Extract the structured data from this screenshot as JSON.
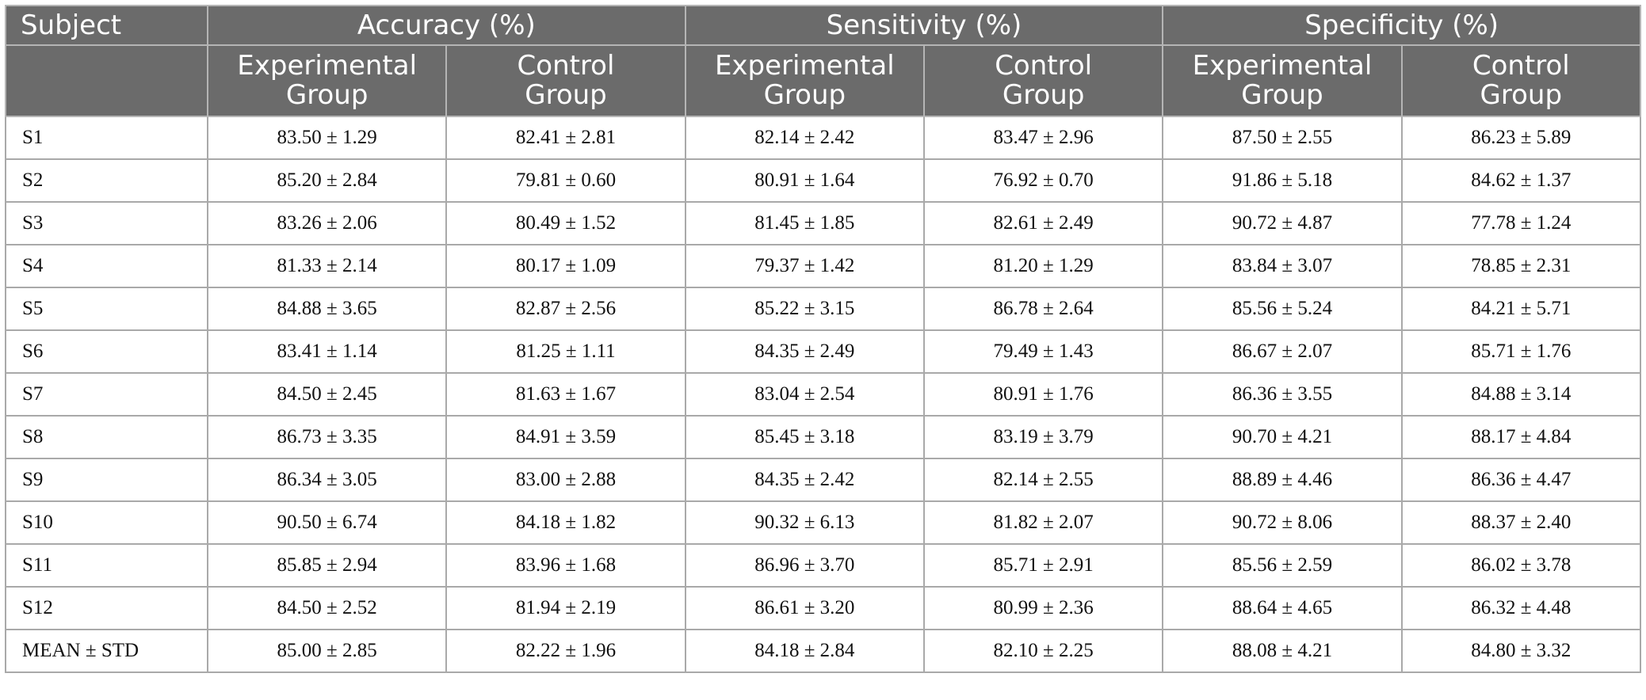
{
  "header": {
    "subject_label": "Subject",
    "groups": [
      "Accuracy (%)",
      "Sensitivity (%)",
      "Specificity (%)"
    ],
    "subheaders": [
      [
        "Experimental",
        "Group"
      ],
      [
        "Control",
        "Group"
      ],
      [
        "Experimental",
        "Group"
      ],
      [
        "Control",
        "Group"
      ],
      [
        "Experimental",
        "Group"
      ],
      [
        "Control",
        "Group"
      ]
    ]
  },
  "rows": [
    [
      "S1",
      "83.50 ± 1.29",
      "82.41 ± 2.81",
      "82.14 ± 2.42",
      "83.47 ± 2.96",
      "87.50 ± 2.55",
      "86.23 ± 5.89"
    ],
    [
      "S2",
      "85.20 ± 2.84",
      "79.81 ± 0.60",
      "80.91 ± 1.64",
      "76.92 ± 0.70",
      "91.86 ± 5.18",
      "84.62 ± 1.37"
    ],
    [
      "S3",
      "83.26 ± 2.06",
      "80.49 ± 1.52",
      "81.45 ± 1.85",
      "82.61 ± 2.49",
      "90.72 ± 4.87",
      "77.78 ± 1.24"
    ],
    [
      "S4",
      "81.33 ± 2.14",
      "80.17 ± 1.09",
      "79.37 ± 1.42",
      "81.20 ± 1.29",
      "83.84 ± 3.07",
      "78.85 ± 2.31"
    ],
    [
      "S5",
      "84.88 ± 3.65",
      "82.87 ± 2.56",
      "85.22 ± 3.15",
      "86.78 ± 2.64",
      "85.56 ± 5.24",
      "84.21 ± 5.71"
    ],
    [
      "S6",
      "83.41 ± 1.14",
      "81.25 ± 1.11",
      "84.35 ± 2.49",
      "79.49 ± 1.43",
      "86.67 ± 2.07",
      "85.71 ± 1.76"
    ],
    [
      "S7",
      "84.50 ± 2.45",
      "81.63 ± 1.67",
      "83.04 ± 2.54",
      "80.91 ± 1.76",
      "86.36 ± 3.55",
      "84.88 ± 3.14"
    ],
    [
      "S8",
      "86.73 ± 3.35",
      "84.91 ± 3.59",
      "85.45 ± 3.18",
      "83.19 ± 3.79",
      "90.70 ± 4.21",
      "88.17 ± 4.84"
    ],
    [
      "S9",
      "86.34 ± 3.05",
      "83.00 ± 2.88",
      "84.35 ± 2.42",
      "82.14 ± 2.55",
      "88.89 ± 4.46",
      "86.36 ± 4.47"
    ],
    [
      "S10",
      "90.50 ± 6.74",
      "84.18 ± 1.82",
      "90.32 ± 6.13",
      "81.82 ± 2.07",
      "90.72 ± 8.06",
      "88.37 ± 2.40"
    ],
    [
      "S11",
      "85.85 ± 2.94",
      "83.96 ± 1.68",
      "86.96 ± 3.70",
      "85.71 ± 2.91",
      "85.56 ± 2.59",
      "86.02 ± 3.78"
    ],
    [
      "S12",
      "84.50 ± 2.52",
      "81.94 ± 2.19",
      "86.61 ± 3.20",
      "80.99 ± 2.36",
      "88.64 ± 4.65",
      "86.32 ± 4.48"
    ],
    [
      "MEAN ± STD",
      "85.00 ± 2.85",
      "82.22 ± 1.96",
      "84.18 ± 2.84",
      "82.10 ± 2.25",
      "88.08 ± 4.21",
      "84.80 ± 3.32"
    ]
  ]
}
